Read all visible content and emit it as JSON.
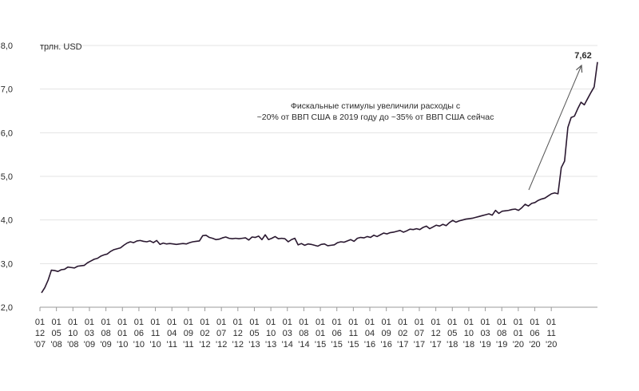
{
  "chart_data": {
    "type": "line",
    "unit_label": "трлн. USD",
    "ylim": [
      2.0,
      8.0
    ],
    "y_ticks": [
      "2,0",
      "3,0",
      "4,0",
      "5,0",
      "6,0",
      "7,0",
      "8,0"
    ],
    "x_ticks": [
      [
        "01",
        "12",
        "'07"
      ],
      [
        "01",
        "05",
        "'08"
      ],
      [
        "01",
        "10",
        "'08"
      ],
      [
        "01",
        "03",
        "'09"
      ],
      [
        "01",
        "08",
        "'09"
      ],
      [
        "01",
        "01",
        "'10"
      ],
      [
        "01",
        "06",
        "'10"
      ],
      [
        "01",
        "11",
        "'10"
      ],
      [
        "01",
        "04",
        "'11"
      ],
      [
        "01",
        "09",
        "'11"
      ],
      [
        "01",
        "02",
        "'12"
      ],
      [
        "01",
        "07",
        "'12"
      ],
      [
        "01",
        "12",
        "'12"
      ],
      [
        "01",
        "05",
        "'13"
      ],
      [
        "01",
        "10",
        "'13"
      ],
      [
        "01",
        "03",
        "'14"
      ],
      [
        "01",
        "08",
        "'14"
      ],
      [
        "01",
        "01",
        "'15"
      ],
      [
        "01",
        "06",
        "'15"
      ],
      [
        "01",
        "11",
        "'15"
      ],
      [
        "01",
        "04",
        "'16"
      ],
      [
        "01",
        "09",
        "'16"
      ],
      [
        "01",
        "02",
        "'17"
      ],
      [
        "01",
        "07",
        "'17"
      ],
      [
        "01",
        "12",
        "'17"
      ],
      [
        "01",
        "05",
        "'18"
      ],
      [
        "01",
        "10",
        "'18"
      ],
      [
        "01",
        "03",
        "'19"
      ],
      [
        "01",
        "08",
        "'19"
      ],
      [
        "01",
        "01",
        "'20"
      ],
      [
        "01",
        "06",
        "'20"
      ],
      [
        "01",
        "11",
        "'20"
      ]
    ],
    "series": [
      {
        "values": [
          2.33,
          2.45,
          2.62,
          2.85,
          2.84,
          2.82,
          2.86,
          2.87,
          2.92,
          2.91,
          2.9,
          2.94,
          2.95,
          2.96,
          3.02,
          3.06,
          3.1,
          3.12,
          3.17,
          3.2,
          3.22,
          3.28,
          3.32,
          3.34,
          3.36,
          3.42,
          3.47,
          3.5,
          3.48,
          3.52,
          3.53,
          3.51,
          3.5,
          3.52,
          3.48,
          3.53,
          3.44,
          3.47,
          3.45,
          3.46,
          3.45,
          3.44,
          3.45,
          3.46,
          3.45,
          3.48,
          3.5,
          3.51,
          3.52,
          3.64,
          3.65,
          3.6,
          3.58,
          3.55,
          3.56,
          3.59,
          3.61,
          3.58,
          3.57,
          3.58,
          3.57,
          3.58,
          3.59,
          3.54,
          3.61,
          3.6,
          3.63,
          3.55,
          3.66,
          3.55,
          3.58,
          3.62,
          3.57,
          3.58,
          3.57,
          3.5,
          3.55,
          3.58,
          3.43,
          3.46,
          3.42,
          3.45,
          3.44,
          3.42,
          3.4,
          3.44,
          3.45,
          3.41,
          3.42,
          3.43,
          3.48,
          3.5,
          3.49,
          3.52,
          3.55,
          3.51,
          3.58,
          3.6,
          3.59,
          3.62,
          3.6,
          3.65,
          3.62,
          3.66,
          3.7,
          3.68,
          3.71,
          3.72,
          3.74,
          3.76,
          3.72,
          3.75,
          3.79,
          3.78,
          3.8,
          3.78,
          3.83,
          3.86,
          3.8,
          3.84,
          3.88,
          3.86,
          3.9,
          3.87,
          3.94,
          3.99,
          3.95,
          3.98,
          4.0,
          4.02,
          4.03,
          4.04,
          4.06,
          4.08,
          4.1,
          4.12,
          4.14,
          4.11,
          4.22,
          4.15,
          4.2,
          4.21,
          4.22,
          4.24,
          4.25,
          4.22,
          4.28,
          4.36,
          4.32,
          4.38,
          4.4,
          4.45,
          4.48,
          4.5,
          4.55,
          4.6,
          4.62,
          4.6,
          5.2,
          5.35,
          6.12,
          6.35,
          6.38,
          6.55,
          6.7,
          6.64,
          6.78,
          6.92,
          7.05,
          7.62
        ]
      }
    ],
    "last_value_label": "7,62",
    "annotation": [
      "Фискальные стимулы увеличили расходы с",
      "~20% от ВВП США в 2019 году до ~35% от ВВП США сейчас"
    ]
  }
}
